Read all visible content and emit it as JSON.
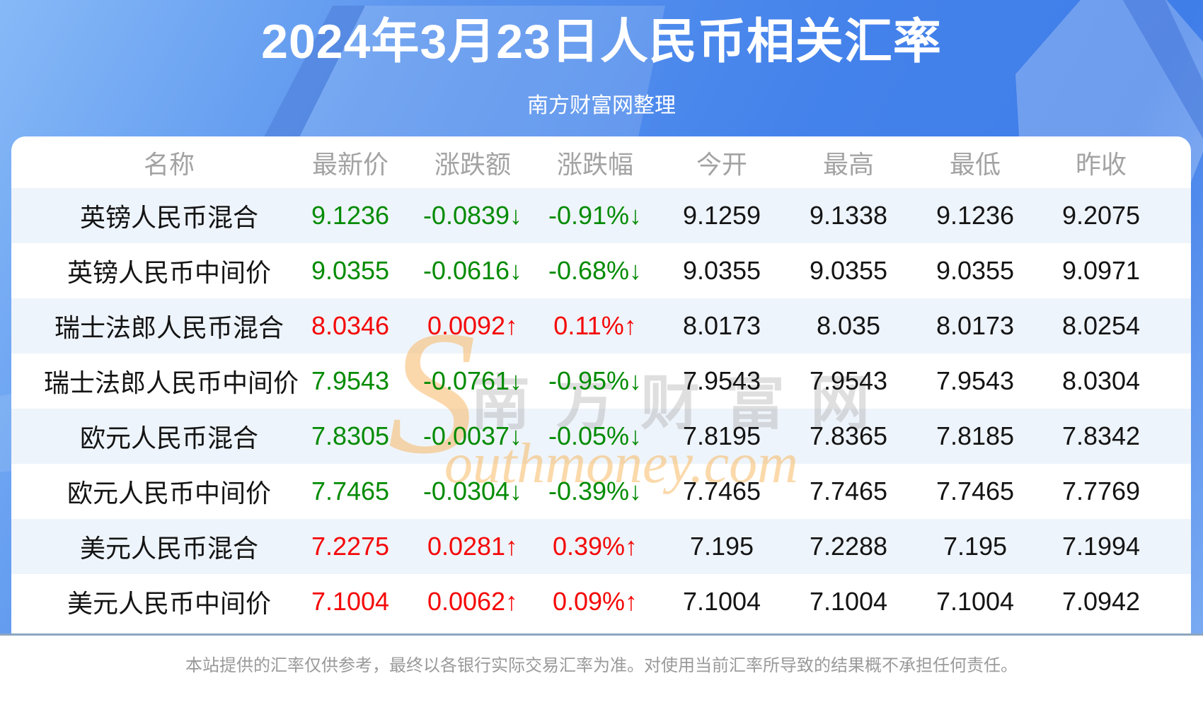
{
  "page": {
    "title": "2024年3月23日人民币相关汇率",
    "subtitle": "南方财富网整理",
    "disclaimer": "本站提供的汇率仅供参考，最终以各银行实际交易汇率为准。对使用当前汇率所导致的结果概不承担任何责任。"
  },
  "watermark": {
    "brand_initial": "S",
    "brand_cjk": "南方财富网",
    "brand_script": "outhmoney.com"
  },
  "colors": {
    "banner_blue": "#4583eb",
    "stripe_blue": "#eef4fb",
    "up_red": "#f40808",
    "down_green": "#038b03",
    "header_gray": "#a3a3a3",
    "divider_gray_blue": "#8ca6bf"
  },
  "chart_data": {
    "type": "table",
    "title": "2024年3月23日人民币相关汇率",
    "subtitle": "南方财富网整理",
    "columns": [
      "名称",
      "最新价",
      "涨跌额",
      "涨跌幅",
      "今开",
      "最高",
      "最低",
      "昨收"
    ],
    "rows": [
      {
        "name": "英镑人民币混合",
        "latest": "9.1236",
        "change": "-0.0839↓",
        "change_pct": "-0.91%↓",
        "trend": "down",
        "open": "9.1259",
        "high": "9.1338",
        "low": "9.1236",
        "prev_close": "9.2075"
      },
      {
        "name": "英镑人民币中间价",
        "latest": "9.0355",
        "change": "-0.0616↓",
        "change_pct": "-0.68%↓",
        "trend": "down",
        "open": "9.0355",
        "high": "9.0355",
        "low": "9.0355",
        "prev_close": "9.0971"
      },
      {
        "name": "瑞士法郎人民币混合",
        "latest": "8.0346",
        "change": "0.0092↑",
        "change_pct": "0.11%↑",
        "trend": "up",
        "open": "8.0173",
        "high": "8.035",
        "low": "8.0173",
        "prev_close": "8.0254"
      },
      {
        "name": "瑞士法郎人民币中间价",
        "latest": "7.9543",
        "change": "-0.0761↓",
        "change_pct": "-0.95%↓",
        "trend": "down",
        "open": "7.9543",
        "high": "7.9543",
        "low": "7.9543",
        "prev_close": "8.0304"
      },
      {
        "name": "欧元人民币混合",
        "latest": "7.8305",
        "change": "-0.0037↓",
        "change_pct": "-0.05%↓",
        "trend": "down",
        "open": "7.8195",
        "high": "7.8365",
        "low": "7.8185",
        "prev_close": "7.8342"
      },
      {
        "name": "欧元人民币中间价",
        "latest": "7.7465",
        "change": "-0.0304↓",
        "change_pct": "-0.39%↓",
        "trend": "down",
        "open": "7.7465",
        "high": "7.7465",
        "low": "7.7465",
        "prev_close": "7.7769"
      },
      {
        "name": "美元人民币混合",
        "latest": "7.2275",
        "change": "0.0281↑",
        "change_pct": "0.39%↑",
        "trend": "up",
        "open": "7.195",
        "high": "7.2288",
        "low": "7.195",
        "prev_close": "7.1994"
      },
      {
        "name": "美元人民币中间价",
        "latest": "7.1004",
        "change": "0.0062↑",
        "change_pct": "0.09%↑",
        "trend": "up",
        "open": "7.1004",
        "high": "7.1004",
        "low": "7.1004",
        "prev_close": "7.0942"
      }
    ]
  }
}
